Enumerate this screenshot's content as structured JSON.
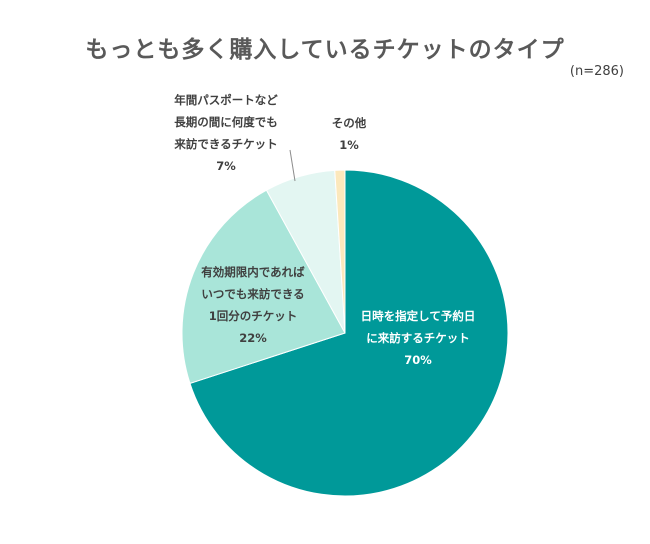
{
  "chart_data": {
    "type": "pie",
    "title": "もっとも多く購入しているチケットのタイプ",
    "note": "(n=286)",
    "slices": [
      {
        "label_lines": [
          "日時を指定して予約日",
          "に来訪するチケット"
        ],
        "value": 70,
        "value_label": "70%",
        "color": "#009999"
      },
      {
        "label_lines": [
          "有効期限内であれば",
          "いつでも来訪できる",
          "1回分のチケット"
        ],
        "value": 22,
        "value_label": "22%",
        "color": "#a9e5d9"
      },
      {
        "label_lines": [
          "年間パスポートなど",
          "長期の間に何度でも",
          "来訪できるチケット"
        ],
        "value": 7,
        "value_label": "7%",
        "color": "#e3f6f2"
      },
      {
        "label_lines": [
          "その他"
        ],
        "value": 1,
        "value_label": "1%",
        "color": "#fce8bc"
      }
    ]
  }
}
